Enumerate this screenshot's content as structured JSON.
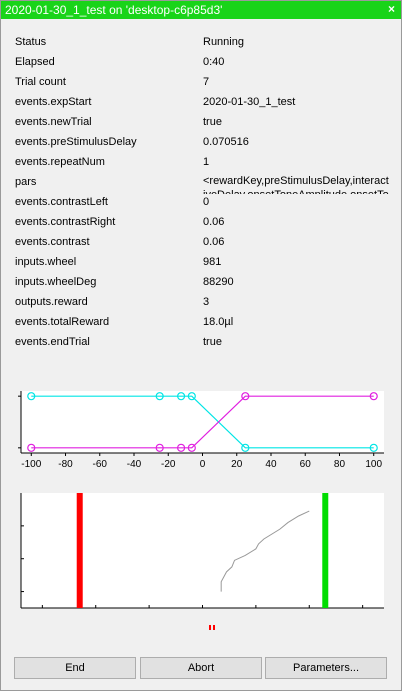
{
  "window": {
    "title": "2020-01-30_1_test on 'desktop-c6p85d3'",
    "close_glyph": "×"
  },
  "rows": [
    {
      "key": "Status",
      "value": "Running"
    },
    {
      "key": "Elapsed",
      "value": "0:40"
    },
    {
      "key": "Trial count",
      "value": "7"
    },
    {
      "key": "events.expStart",
      "value": "2020-01-30_1_test"
    },
    {
      "key": "events.newTrial",
      "value": "true"
    },
    {
      "key": "events.preStimulusDelay",
      "value": "0.070516"
    },
    {
      "key": "events.repeatNum",
      "value": "1"
    },
    {
      "key": "pars",
      "value": "<rewardKey,preStimulusDelay,interactiveDelay,onsetToneAmplitude,onsetTo"
    },
    {
      "key": "events.contrastLeft",
      "value": "0"
    },
    {
      "key": "events.contrastRight",
      "value": "0.06"
    },
    {
      "key": "events.contrast",
      "value": "0.06"
    },
    {
      "key": "inputs.wheel",
      "value": "981"
    },
    {
      "key": "inputs.wheelDeg",
      "value": "88290"
    },
    {
      "key": "outputs.reward",
      "value": "3"
    },
    {
      "key": "events.totalReward",
      "value": "18.0µl"
    },
    {
      "key": "events.endTrial",
      "value": "true"
    }
  ],
  "chart_data": [
    {
      "type": "line",
      "x": [
        -100,
        -25,
        -12.5,
        -6.25,
        25,
        100
      ],
      "xticks": [
        "-100",
        "-80",
        "-60",
        "-40",
        "-20",
        "0",
        "20",
        "40",
        "60",
        "80",
        "100"
      ],
      "xlim": [
        -106,
        106
      ],
      "ylim": [
        -0.1,
        1.1
      ],
      "series": [
        {
          "color": "#00e5e5",
          "values": [
            1,
            1,
            1,
            1,
            0,
            0
          ]
        },
        {
          "color": "#e020e0",
          "values": [
            0,
            0,
            0,
            0,
            1,
            1
          ]
        }
      ]
    },
    {
      "type": "line",
      "series": [
        {
          "color": "#999999",
          "values": [
            [
              0.7,
              0
            ],
            [
              0.7,
              0.3
            ],
            [
              0.9,
              0.6
            ],
            [
              1.1,
              0.75
            ],
            [
              1.2,
              0.95
            ],
            [
              1.6,
              1.1
            ],
            [
              2.0,
              1.3
            ],
            [
              2.1,
              1.45
            ],
            [
              2.3,
              1.6
            ],
            [
              2.9,
              1.9
            ],
            [
              3.2,
              2.1
            ],
            [
              3.6,
              2.3
            ],
            [
              4.0,
              2.45
            ]
          ]
        }
      ],
      "xlim": [
        -6.8,
        6.8
      ],
      "ylim": [
        -0.5,
        3
      ],
      "markers": [
        {
          "color": "#ff0000",
          "x": -4.6
        },
        {
          "color": "#00dd00",
          "x": 4.6
        }
      ]
    }
  ],
  "indicator": {
    "color": "#ff0000"
  },
  "buttons": {
    "end": "End",
    "abort": "Abort",
    "parameters": "Parameters..."
  }
}
